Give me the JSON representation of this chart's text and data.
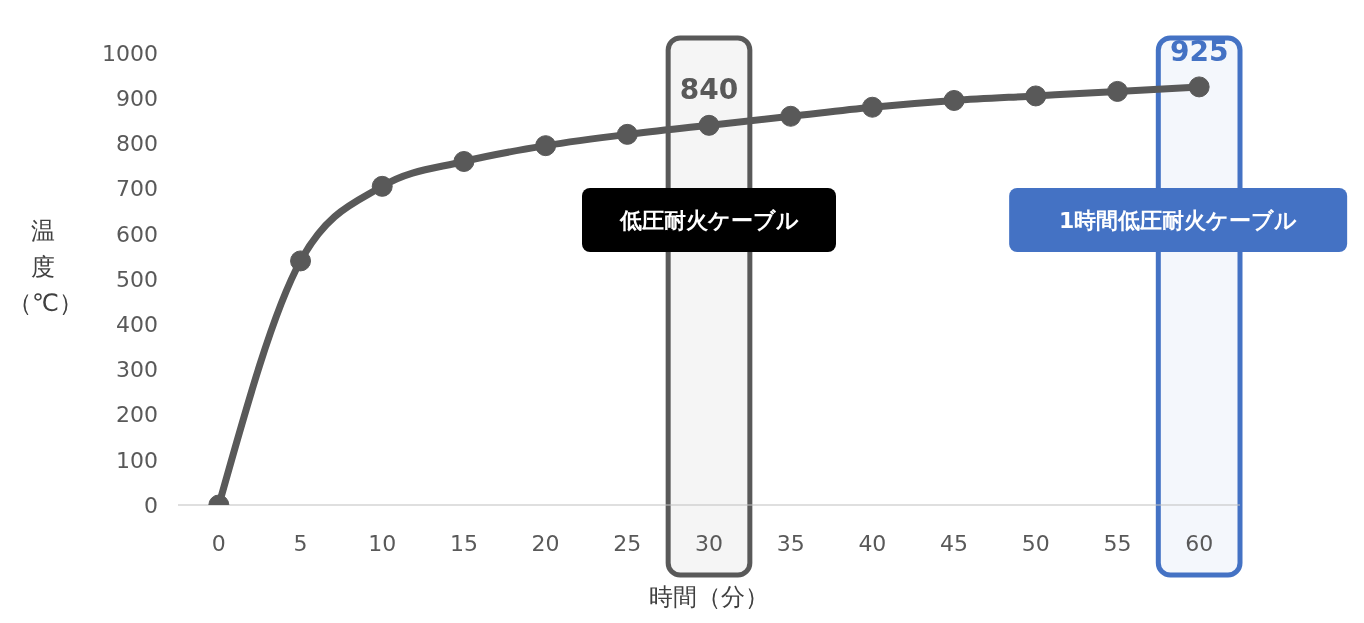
{
  "chart_data": {
    "type": "line",
    "xlabel": "時間（分）",
    "ylabel": "温度（℃）",
    "x": [
      0,
      5,
      10,
      15,
      20,
      25,
      30,
      35,
      40,
      45,
      50,
      55,
      60
    ],
    "series": [
      {
        "color": "#595959",
        "values": [
          0,
          540,
          705,
          760,
          795,
          820,
          840,
          860,
          880,
          895,
          905,
          915,
          925
        ],
        "value_labels": [
          null,
          null,
          null,
          null,
          null,
          null,
          "840",
          null,
          null,
          null,
          null,
          null,
          "925"
        ]
      }
    ],
    "xlim": [
      -2.5,
      62.5
    ],
    "xticks": [
      0,
      5,
      10,
      15,
      20,
      25,
      30,
      35,
      40,
      45,
      50,
      55,
      60
    ],
    "ylim": [
      0,
      1000
    ],
    "yticks": [
      0,
      100,
      200,
      300,
      400,
      500,
      600,
      700,
      800,
      900,
      1000
    ],
    "bands": [
      {
        "axis": "x",
        "from": 27.5,
        "to": 32.5,
        "label": "低圧耐火ケーブル",
        "color": "#595959"
      },
      {
        "axis": "x",
        "from": 57.5,
        "to": 62.5,
        "label": "1時間低圧耐火ケーブル",
        "color": "#4472c4"
      }
    ],
    "grid": false,
    "legend": false,
    "marker": "circle",
    "line_style": "solid"
  }
}
